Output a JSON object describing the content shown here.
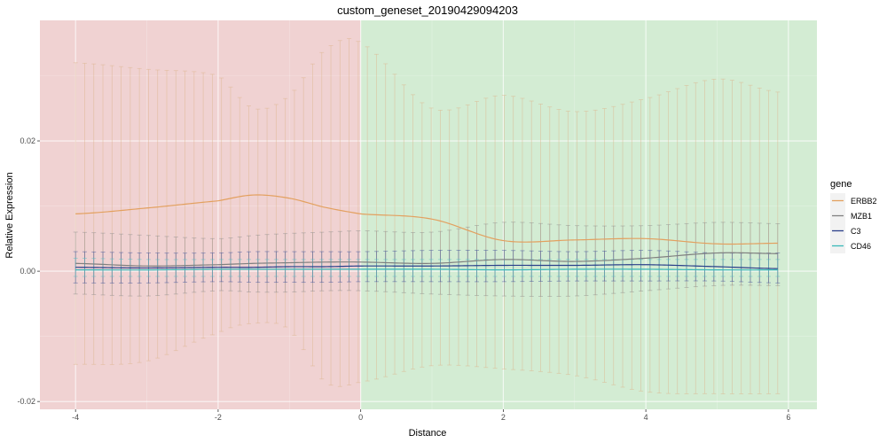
{
  "chart_data": {
    "type": "line",
    "title": "custom_geneset_20190429094203",
    "xlabel": "Distance",
    "ylabel": "Relative Expression",
    "xlim": [
      -4.5,
      6.4
    ],
    "ylim": [
      -0.0212,
      0.0385
    ],
    "x_ticks": [
      -4,
      -2,
      0,
      2,
      4,
      6
    ],
    "x_tick_labels": [
      "-4",
      "-2",
      "0",
      "2",
      "4",
      "6"
    ],
    "y_ticks": [
      -0.02,
      0.0,
      0.02
    ],
    "y_tick_labels": [
      "-0.02",
      "0.00",
      "0.02"
    ],
    "grid": true,
    "background_regions": [
      {
        "from": -4.5,
        "to": 0,
        "color": "#f0d2d2"
      },
      {
        "from": 0,
        "to": 6.4,
        "color": "#d3ecd3"
      }
    ],
    "legend": {
      "title": "gene",
      "position": "right"
    },
    "x": [
      -4.0,
      -3.0,
      -2.0,
      -1.5,
      -1.0,
      -0.5,
      0.0,
      1.0,
      2.0,
      3.0,
      4.0,
      5.0,
      5.85
    ],
    "series": [
      {
        "name": "ERBB2",
        "color": "#e3a05f",
        "bar_color": "#dcb48c",
        "values": [
          0.0088,
          0.0097,
          0.0108,
          0.0117,
          0.0112,
          0.0098,
          0.0088,
          0.008,
          0.0047,
          0.0048,
          0.005,
          0.0042,
          0.0043
        ],
        "upper": [
          0.032,
          0.031,
          0.03,
          0.025,
          0.027,
          0.034,
          0.035,
          0.025,
          0.027,
          0.0245,
          0.0265,
          0.0295,
          0.0275
        ],
        "lower": [
          -0.0143,
          -0.0138,
          -0.0095,
          -0.008,
          -0.009,
          -0.017,
          -0.017,
          -0.0145,
          -0.015,
          -0.016,
          -0.0185,
          -0.0188,
          -0.0188
        ]
      },
      {
        "name": "MZB1",
        "color": "#808080",
        "bar_color": "#8c8c8c",
        "values": [
          0.0012,
          0.0008,
          0.001,
          0.0012,
          0.0013,
          0.0014,
          0.0014,
          0.0012,
          0.0018,
          0.0015,
          0.002,
          0.0028,
          0.0027
        ],
        "upper": [
          0.006,
          0.0055,
          0.005,
          0.0055,
          0.0058,
          0.006,
          0.0062,
          0.006,
          0.0075,
          0.007,
          0.007,
          0.0075,
          0.0073
        ],
        "lower": [
          -0.0035,
          -0.0038,
          -0.003,
          -0.0032,
          -0.0032,
          -0.003,
          -0.003,
          -0.0035,
          -0.0038,
          -0.0038,
          -0.003,
          -0.0022,
          -0.0022
        ]
      },
      {
        "name": "C3",
        "color": "#2b3f8a",
        "bar_color": "#3b4f9a",
        "values": [
          0.0006,
          0.0005,
          0.0006,
          0.0006,
          0.0007,
          0.0007,
          0.0008,
          0.0008,
          0.0009,
          0.0009,
          0.001,
          0.0007,
          0.0004
        ],
        "upper": [
          0.003,
          0.0028,
          0.0028,
          0.003,
          0.003,
          0.003,
          0.003,
          0.0032,
          0.0032,
          0.003,
          0.0032,
          0.0028,
          0.0028
        ],
        "lower": [
          -0.0018,
          -0.0018,
          -0.0016,
          -0.0017,
          -0.0017,
          -0.0017,
          -0.0016,
          -0.0016,
          -0.0016,
          -0.0015,
          -0.0015,
          -0.0015,
          -0.0018
        ]
      },
      {
        "name": "CD46",
        "color": "#3ab8b8",
        "bar_color": "#4fc0c0",
        "values": [
          0.0002,
          0.0002,
          0.0003,
          0.0003,
          0.0003,
          0.0003,
          0.0003,
          0.0003,
          0.0002,
          0.0003,
          0.0003,
          0.0002,
          0.0002
        ],
        "upper": [
          0.002,
          0.0018,
          0.0018,
          0.0018,
          0.0018,
          0.0018,
          0.0018,
          0.0018,
          0.0018,
          0.0018,
          0.0018,
          0.0018,
          0.0018
        ],
        "lower": [
          -0.0008,
          -0.0008,
          -0.0008,
          -0.0008,
          -0.0008,
          -0.0008,
          -0.0008,
          -0.0008,
          -0.0008,
          -0.0008,
          -0.0008,
          -0.0008,
          -0.0008
        ]
      }
    ]
  }
}
